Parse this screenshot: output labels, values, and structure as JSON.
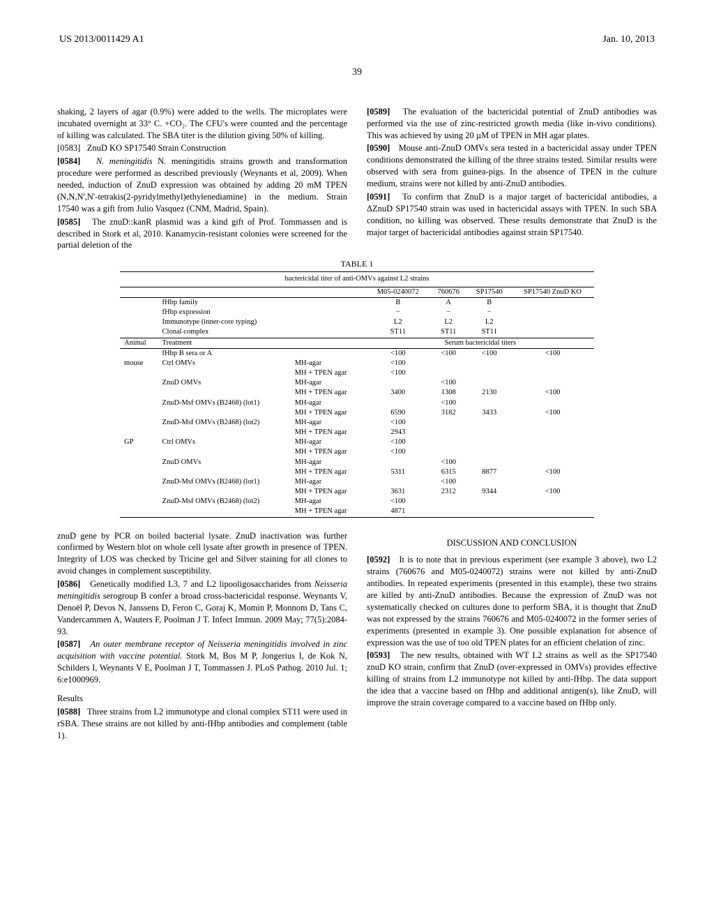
{
  "header": {
    "pub_id": "US 2013/0011429 A1",
    "date": "Jan. 10, 2013"
  },
  "page_number": "39",
  "left_col": {
    "p1": "shaking, 2 layers of agar (0.9%) were added to the wells. The microplates were incubated overnight at 33° C. +CO₂. The CFU's were counted and the percentage of killing was calculated. The SBA titer is the dilution giving 50% of killing.",
    "p2_head": "[0583]   ZnuD KO SP17540 Strain Construction",
    "p3_head": "[0584]",
    "p3": "N. meningitidis strains growth and transformation procedure were performed as described previously (Weynants et al, 2009). When needed, induction of ZnuD expression was obtained by adding 20 mM TPEN (N,N,N',N'-tetrakis(2-pyridylmethyl)ethylenediamine) in the medium. Strain 17540 was a gift from Julio Vasquez (CNM, Madrid, Spain).",
    "p4_head": "[0585]",
    "p4": "The znuD::kanR plasmid was a kind gift of Prof. Tommassen and is described in Stork et al, 2010. Kanamycin-resistant colonies were screened for the partial deletion of the"
  },
  "right_col": {
    "p1_head": "[0589]",
    "p1": "The evaluation of the bactericidal potential of ZnuD antibodies was performed via the use of zinc-restricted growth media (like in-vivo conditions). This was achieved by using 20 µM of TPEN in MH agar plates.",
    "p2_head": "[0590]",
    "p2": "Mouse anti-ZnuD OMVs sera tested in a bactericidal assay under TPEN conditions demonstrated the killing of the three strains tested. Similar results were observed with sera from guinea-pigs. In the absence of TPEN in the culture medium, strains were not killed by anti-ZnuD antibodies.",
    "p3_head": "[0591]",
    "p3": "To confirm that ZnuD is a major target of bactericidal antibodies, a ΔZnuD SP17540 strain was used in bactericidal assays with TPEN. In such SBA condition, no killing was observed. These results demonstrate that ZnuD is the major target of bactericidal antibodies against strain SP17540."
  },
  "table": {
    "label": "TABLE 1",
    "caption": "bactericidal titer of anti-OMVs against L2 strains",
    "col_heads": [
      "",
      "",
      "",
      "M05-0240072",
      "760676",
      "SP17540",
      "SP17540 ZnuD KO"
    ],
    "meta_rows": [
      [
        "",
        "fHbp family",
        "",
        "B",
        "A",
        "B",
        ""
      ],
      [
        "",
        "fHbp expression",
        "",
        "−",
        "−",
        "−",
        ""
      ],
      [
        "",
        "Immunotype (inner-core typing)",
        "",
        "L2",
        "L2",
        "L2",
        ""
      ],
      [
        "",
        "Clonal complex",
        "",
        "ST11",
        "ST11",
        "ST11",
        ""
      ]
    ],
    "sub_head": [
      "Animal",
      "Treatment",
      "",
      "Serum bactericidal titers"
    ],
    "data_rows": [
      [
        "",
        "fHbp B sera or A",
        "",
        "<100",
        "<100",
        "<100",
        "<100"
      ],
      [
        "mouse",
        "Ctrl OMVs",
        "MH-agar",
        "<100",
        "",
        "",
        ""
      ],
      [
        "",
        "",
        "MH + TPEN agar",
        "<100",
        "",
        "",
        ""
      ],
      [
        "",
        "ZnuD OMVs",
        "MH-agar",
        "",
        "<100",
        "",
        ""
      ],
      [
        "",
        "",
        "MH + TPEN agar",
        "3400",
        "1308",
        "2130",
        "<100"
      ],
      [
        "",
        "ZnuD-Msf OMVs (B2468) (lot1)",
        "MH-agar",
        "",
        "<100",
        "",
        ""
      ],
      [
        "",
        "",
        "MH + TPEN agar",
        "6590",
        "3182",
        "3433",
        "<100"
      ],
      [
        "",
        "ZnuD-Msf OMVs (B2468) (lot2)",
        "MH-agar",
        "<100",
        "",
        "",
        ""
      ],
      [
        "",
        "",
        "MH + TPEN agar",
        "2943",
        "",
        "",
        ""
      ],
      [
        "GP",
        "Ctrl OMVs",
        "MH-agar",
        "<100",
        "",
        "",
        ""
      ],
      [
        "",
        "",
        "MH + TPEN agar",
        "<100",
        "",
        "",
        ""
      ],
      [
        "",
        "ZnuD OMVs",
        "MH-agar",
        "",
        "<100",
        "",
        ""
      ],
      [
        "",
        "",
        "MH + TPEN agar",
        "5311",
        "6315",
        "8877",
        "<100"
      ],
      [
        "",
        "ZnuD-Msf OMVs (B2468) (lot1)",
        "MH-agar",
        "",
        "<100",
        "",
        ""
      ],
      [
        "",
        "",
        "MH + TPEN agar",
        "3631",
        "2312",
        "9344",
        "<100"
      ],
      [
        "",
        "ZnuD-Msf OMVs (B2468) (lot2)",
        "MH-agar",
        "<100",
        "",
        "",
        ""
      ],
      [
        "",
        "",
        "MH + TPEN agar",
        "4871",
        "",
        "",
        ""
      ]
    ]
  },
  "bottom_left": {
    "p1": "znuD gene by PCR on boiled bacterial lysate. ZnuD inactivation was further confirmed by Western blot on whole cell lysate after growth in presence of TPEN. Integrity of LOS was checked by Tricine gel and Silver staining for all clones to avoid changes in complement susceptibility.",
    "p2_head": "[0586]",
    "p2a": "Genetically modified L3, 7 and L2 lipooligosaccharides from ",
    "p2b": "Neisseria meningitidis",
    "p2c": " serogroup B confer a broad cross-bactericidal response. Weynants V, Denoël P, Devos N, Janssens D, Feron C, Goraj K, Momin P, Monnom D, Tans C, Vandercammen A, Wauters F, Poolman J T. Infect Immun. 2009 May; 77(5):2084-93.",
    "p3_head": "[0587]",
    "p3a": "An outer membrane receptor of Neisseria meningitidis involved in zinc acquisition with vaccine potential.",
    "p3b": " Stork M, Bos M P, Jongerius I, de Kok N, Schilders I, Weynants V E, Poolman J T, Tommassen J. PLoS Pathog. 2010 Jul. 1; 6:e1000969.",
    "results_head": "Results",
    "p4_head": "[0588]",
    "p4": "Three strains from L2 immunotype and clonal complex ST11 were used in rSBA. These strains are not killed by anti-fHbp antibodies and complement (table 1)."
  },
  "bottom_right": {
    "heading": "DISCUSSION AND CONCLUSION",
    "p1_head": "[0592]",
    "p1": "It is to note that in previous experiment (see example 3 above), two L2 strains (760676 and M05-0240072) strains were not killed by anti-ZnuD antibodies. In repeated experiments (presented in this example), these two strains are killed by anti-ZnuD antibodies. Because the expression of ZnuD was not systematically checked on cultures done to perform SBA, it is thought that ZnuD was not expressed by the strains 760676 and M05-0240072 in the former series of experiments (presented in example 3). One possible explanation for absence of expression was the use of too old TPEN plates for an efficient chelation of zinc.",
    "p2_head": "[0593]",
    "p2": "The new results, obtained with WT L2 strains as well as the SP17540 znuD KO strain, confirm that ZnuD (over-expressed in OMVs) provides effective killing of strains from L2 immunotype not killed by anti-fHbp. The data support the idea that a vaccine based on fHbp and additional antigen(s), like ZnuD, will improve the strain coverage compared to a vaccine based on fHbp only."
  }
}
